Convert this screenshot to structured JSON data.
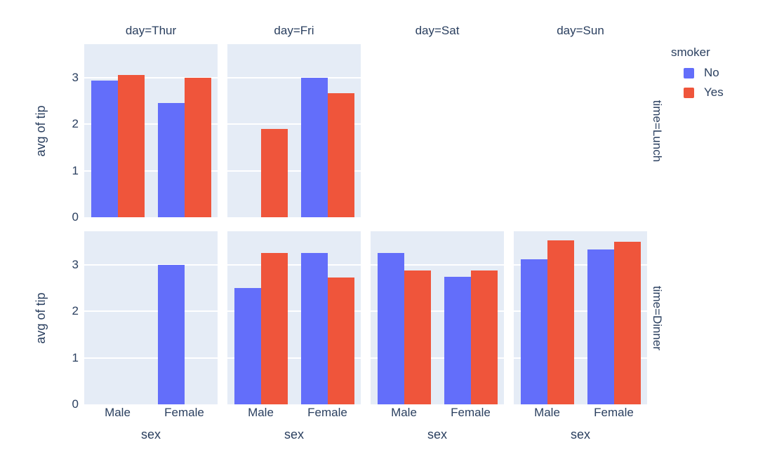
{
  "chart_data": {
    "type": "bar",
    "title": "",
    "xlabel": "sex",
    "ylabel": "avg of tip",
    "facet_col_label": "day",
    "facet_row_label": "time",
    "col_titles": [
      "day=Thur",
      "day=Fri",
      "day=Sat",
      "day=Sun"
    ],
    "row_titles": [
      "time=Lunch",
      "time=Dinner"
    ],
    "categories": [
      "Male",
      "Female"
    ],
    "series_names": [
      "No",
      "Yes"
    ],
    "series_colors": [
      "#636EFA",
      "#EF553B"
    ],
    "yticks": [
      0,
      1,
      2,
      3
    ],
    "ylim": [
      0,
      3.72
    ],
    "grid": "on",
    "legend_position": "right",
    "panel_bg": "#E5ECF6",
    "gridline_color": "#ffffff",
    "text_color": "#2a3f5f",
    "legend": {
      "title": "smoker",
      "items": [
        {
          "label": "No",
          "color": "#636EFA"
        },
        {
          "label": "Yes",
          "color": "#EF553B"
        }
      ]
    },
    "panels": [
      {
        "row": "Lunch",
        "col": "Thur",
        "values": [
          [
            2.94,
            3.06
          ],
          [
            2.45,
            2.99
          ]
        ]
      },
      {
        "row": "Lunch",
        "col": "Fri",
        "values": [
          [
            null,
            1.9
          ],
          [
            3.0,
            2.67
          ]
        ]
      },
      {
        "row": "Lunch",
        "col": "Sat",
        "values": null
      },
      {
        "row": "Lunch",
        "col": "Sun",
        "values": null
      },
      {
        "row": "Dinner",
        "col": "Thur",
        "values": [
          [
            null,
            null
          ],
          [
            3.0,
            null
          ]
        ]
      },
      {
        "row": "Dinner",
        "col": "Fri",
        "values": [
          [
            2.5,
            3.25
          ],
          [
            3.26,
            2.72
          ]
        ]
      },
      {
        "row": "Dinner",
        "col": "Sat",
        "values": [
          [
            3.26,
            2.88
          ],
          [
            2.74,
            2.87
          ]
        ]
      },
      {
        "row": "Dinner",
        "col": "Sun",
        "values": [
          [
            3.12,
            3.52
          ],
          [
            3.33,
            3.5
          ]
        ]
      }
    ]
  }
}
